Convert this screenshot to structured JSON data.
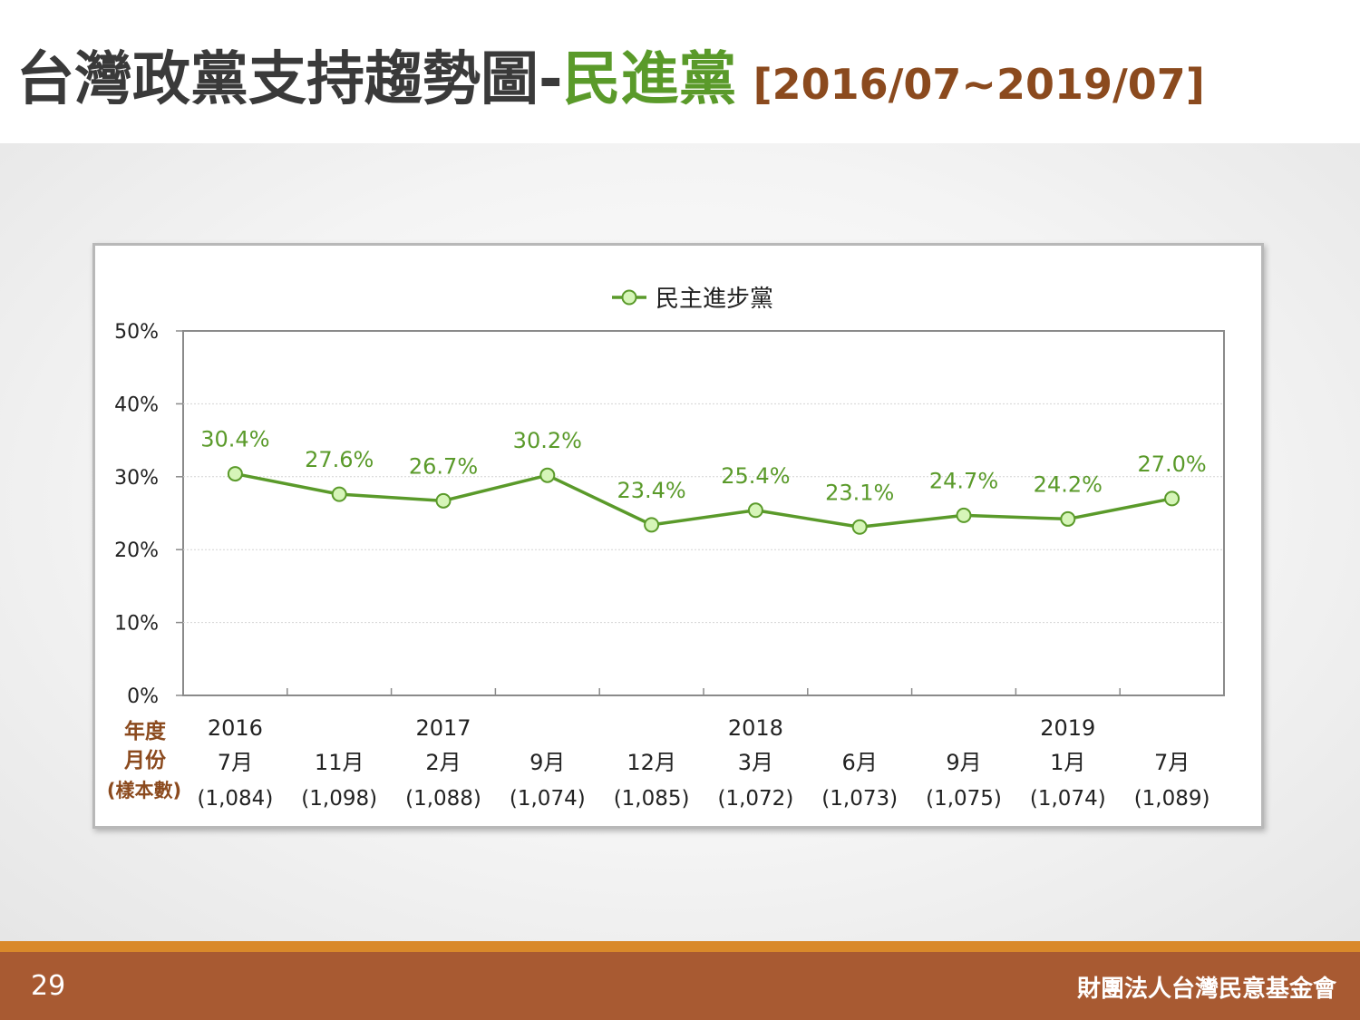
{
  "title": {
    "main": "台灣政黨支持趨勢圖-",
    "party": "民進黨",
    "range": "[2016/07~2019/07]"
  },
  "colors": {
    "line": "#5a9a2a",
    "marker_fill": "#d6f5b8",
    "label": "#5a9a2a",
    "row_label": "#8b4a1e"
  },
  "chart_data": {
    "type": "line",
    "legend": {
      "position": "top",
      "entry": "民主進步黨"
    },
    "ylim": [
      0,
      50
    ],
    "yticks": [
      "0%",
      "10%",
      "20%",
      "30%",
      "40%",
      "50%"
    ],
    "grid": true,
    "row_labels": {
      "year": "年度",
      "month": "月份",
      "sample": "(樣本數)"
    },
    "categories": [
      {
        "year": "2016",
        "month": "7月",
        "sample": "(1,084)"
      },
      {
        "year": "",
        "month": "11月",
        "sample": "(1,098)"
      },
      {
        "year": "2017",
        "month": "2月",
        "sample": "(1,088)"
      },
      {
        "year": "",
        "month": "9月",
        "sample": "(1,074)"
      },
      {
        "year": "",
        "month": "12月",
        "sample": "(1,085)"
      },
      {
        "year": "2018",
        "month": "3月",
        "sample": "(1,072)"
      },
      {
        "year": "",
        "month": "6月",
        "sample": "(1,073)"
      },
      {
        "year": "",
        "month": "9月",
        "sample": "(1,075)"
      },
      {
        "year": "2019",
        "month": "1月",
        "sample": "(1,074)"
      },
      {
        "year": "",
        "month": "7月",
        "sample": "(1,089)"
      }
    ],
    "series": [
      {
        "name": "民主進步黨",
        "values": [
          30.4,
          27.6,
          26.7,
          30.2,
          23.4,
          25.4,
          23.1,
          24.7,
          24.2,
          27.0
        ],
        "labels": [
          "30.4%",
          "27.6%",
          "26.7%",
          "30.2%",
          "23.4%",
          "25.4%",
          "23.1%",
          "24.7%",
          "24.2%",
          "27.0%"
        ]
      }
    ]
  },
  "footer": {
    "page_number": "29",
    "org": "財團法人台灣民意基金會"
  }
}
